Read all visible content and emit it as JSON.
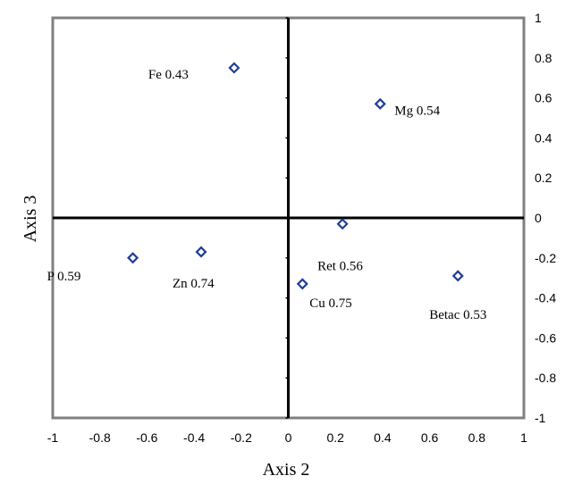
{
  "chart_data": {
    "type": "scatter",
    "xlabel": "Axis 2",
    "ylabel": "Axis 3",
    "xlim": [
      -1,
      1
    ],
    "ylim": [
      -1,
      1
    ],
    "x_ticks": [
      "-1",
      "-0.8",
      "-0.6",
      "-0.4",
      "-0.2",
      "0",
      "0.2",
      "0.4",
      "0.6",
      "0.8",
      "1"
    ],
    "y_ticks": [
      "1",
      "0.8",
      "0.6",
      "0.4",
      "0.2",
      "0",
      "-0.2",
      "-0.4",
      "-0.6",
      "-0.8",
      "-1"
    ],
    "grid": false,
    "marker": "diamond",
    "marker_color": "#1f3d99",
    "points": [
      {
        "x": -0.23,
        "y": 0.75,
        "label": "Fe 0.43"
      },
      {
        "x": 0.39,
        "y": 0.57,
        "label": "Mg 0.54"
      },
      {
        "x": 0.23,
        "y": -0.03,
        "label": "Ret 0.56"
      },
      {
        "x": -0.66,
        "y": -0.2,
        "label": "P 0.59"
      },
      {
        "x": -0.37,
        "y": -0.17,
        "label": "Zn 0.74"
      },
      {
        "x": 0.06,
        "y": -0.33,
        "label": "Cu 0.75"
      },
      {
        "x": 0.72,
        "y": -0.29,
        "label": "Betac 0.53"
      }
    ]
  }
}
